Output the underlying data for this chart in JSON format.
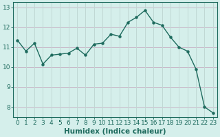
{
  "x": [
    0,
    1,
    2,
    3,
    4,
    5,
    6,
    7,
    8,
    9,
    10,
    11,
    12,
    13,
    14,
    15,
    16,
    17,
    18,
    19,
    20,
    21,
    22,
    23
  ],
  "y": [
    11.35,
    10.8,
    11.2,
    10.15,
    10.6,
    10.65,
    10.7,
    10.95,
    10.6,
    11.15,
    11.2,
    11.65,
    11.55,
    12.25,
    12.5,
    12.85,
    12.25,
    12.1,
    11.5,
    11.0,
    10.8,
    9.9,
    8.0,
    7.7
  ],
  "line_color": "#1e6b5e",
  "marker": "o",
  "marker_size": 2.2,
  "line_width": 1.0,
  "bg_color": "#d5efeb",
  "grid_color_h": "#c8b8c8",
  "grid_color_v": "#c0d8d4",
  "xlabel": "Humidex (Indice chaleur)",
  "xlabel_fontsize": 7.5,
  "tick_fontsize": 6.5,
  "ylim": [
    7.5,
    13.25
  ],
  "xlim": [
    -0.5,
    23.5
  ],
  "yticks": [
    8,
    9,
    10,
    11,
    12,
    13
  ],
  "xticks": [
    0,
    1,
    2,
    3,
    4,
    5,
    6,
    7,
    8,
    9,
    10,
    11,
    12,
    13,
    14,
    15,
    16,
    17,
    18,
    19,
    20,
    21,
    22,
    23
  ]
}
